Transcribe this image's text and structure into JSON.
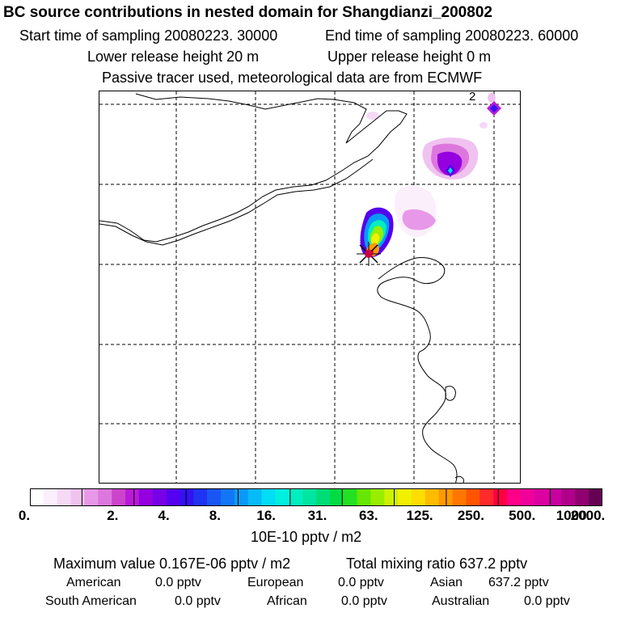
{
  "header": {
    "title": "BC  source contributions in nested domain for Shangdianzi_200802",
    "start_sampling": "Start time of sampling 20080223. 30000",
    "end_sampling": "End time of sampling 20080223. 60000",
    "lower_release": "Lower release height   20 m",
    "upper_release": "Upper release height    0 m",
    "tracer_note": "Passive tracer used, meteorological data are from ECMWF"
  },
  "map": {
    "grid_label": "2",
    "colors": {
      "coast": "#000000",
      "grid": "#000000",
      "marker": "#cc0044"
    }
  },
  "colorbar": {
    "colors": [
      "#ffffff",
      "#fbeffb",
      "#f5d9f5",
      "#f0c2f0",
      "#e898e8",
      "#dd77dd",
      "#cc44cc",
      "#b81ad8",
      "#9400e0",
      "#7700e6",
      "#5500ee",
      "#3311f2",
      "#1f33f2",
      "#1a55f4",
      "#1177f6",
      "#0a99f8",
      "#05bbf8",
      "#00ddf5",
      "#00f0e0",
      "#00eec0",
      "#00e6a0",
      "#00dd77",
      "#00dd44",
      "#22e022",
      "#66e600",
      "#99ee00",
      "#ccf200",
      "#f0f000",
      "#ffdd00",
      "#ffbb00",
      "#ff9900",
      "#ff7700",
      "#ff5500",
      "#ff2a2a",
      "#ff0044",
      "#ff0088",
      "#f0009a",
      "#dd00a0",
      "#c800a0",
      "#b0008a",
      "#900070",
      "#660055"
    ],
    "ticks": [
      "0.",
      "2.",
      "4.",
      "8.",
      "16.",
      "31.",
      "63.",
      "125.",
      "250.",
      "500.",
      "1000.",
      "2000."
    ],
    "units": "10E-10 pptv / m2"
  },
  "stats": {
    "maximum_value": "Maximum value  0.167E-06 pptv / m2",
    "total_mixing": "Total mixing ratio      637.2 pptv",
    "regions": [
      {
        "name": "American",
        "value": "0.0 pptv"
      },
      {
        "name": "European",
        "value": "0.0 pptv"
      },
      {
        "name": "Asian",
        "value": "637.2 pptv"
      },
      {
        "name": "South American",
        "value": "0.0 pptv"
      },
      {
        "name": "African",
        "value": "0.0 pptv"
      },
      {
        "name": "Australian",
        "value": "0.0 pptv"
      }
    ]
  }
}
